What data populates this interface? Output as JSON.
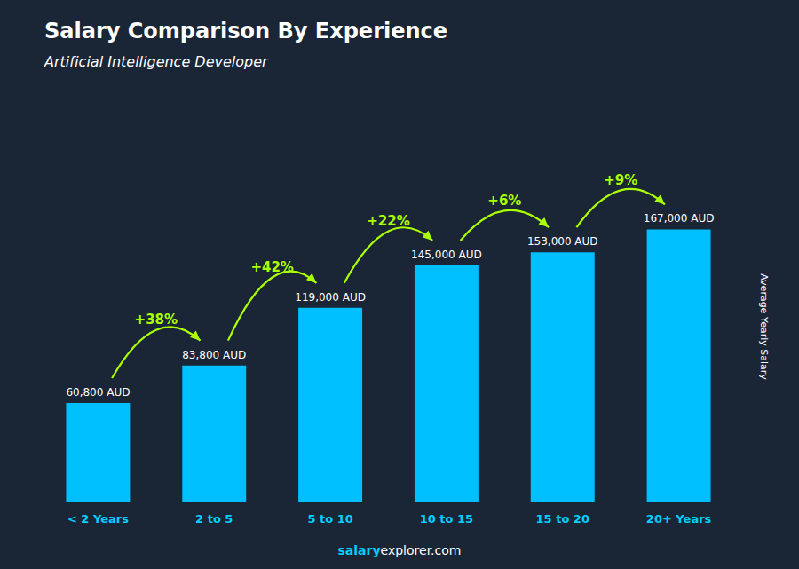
{
  "chart_data": {
    "type": "bar",
    "title": "Salary Comparison By Experience",
    "subtitle": "Artificial Intelligence Developer",
    "categories": [
      "< 2 Years",
      "2 to 5",
      "5 to 10",
      "10 to 15",
      "15 to 20",
      "20+ Years"
    ],
    "values": [
      60800,
      83800,
      119000,
      145000,
      153000,
      167000
    ],
    "value_labels": [
      "60,800 AUD",
      "83,800 AUD",
      "119,000 AUD",
      "145,000 AUD",
      "153,000 AUD",
      "167,000 AUD"
    ],
    "data_labels": true,
    "color": "#00bfff",
    "ylabel": "Average Yearly Salary",
    "ylim": [
      0,
      215000
    ],
    "tick_labels": "x",
    "grid": false,
    "annotations": [
      "+38%",
      "+42%",
      "+22%",
      "+6%",
      "+9%"
    ],
    "footer": [
      "salary",
      "explorer.com"
    ]
  }
}
